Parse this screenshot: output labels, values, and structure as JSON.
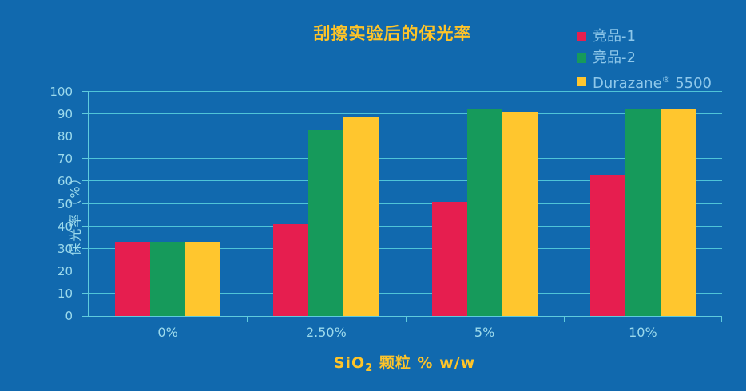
{
  "chart_data": {
    "type": "bar",
    "title": "刮擦实验后的保光率",
    "categories": [
      "0%",
      "2.50%",
      "5%",
      "10%"
    ],
    "series": [
      {
        "name": "竞品-1",
        "color": "#E61E4F",
        "values": [
          33,
          41,
          51,
          63
        ]
      },
      {
        "name": "竞品-2",
        "color": "#169A5B",
        "values": [
          33,
          83,
          92,
          92
        ]
      },
      {
        "name": "Durazane® 5500",
        "name_parts": [
          {
            "t": "Durazane"
          },
          {
            "t": "®",
            "sup": true
          },
          {
            "t": " 5500"
          }
        ],
        "color": "#FFC62E",
        "values": [
          33,
          89,
          91,
          92
        ]
      }
    ],
    "xlabel": "SiO2 颗粒 % w/w",
    "xlabel_parts": [
      {
        "t": "SiO"
      },
      {
        "t": "2",
        "sub": true
      },
      {
        "t": " 颗粒 % w/w"
      }
    ],
    "ylabel": "保光率（%）",
    "ylim": [
      0,
      100
    ],
    "ytick_step": 10,
    "grid": true,
    "legend_position": "top-right"
  },
  "colors": {
    "background": "#1169AE",
    "gridline": "#4FC4D8",
    "axis": "#5FCBDD",
    "tick_label": "#9CDAEC",
    "legend_text": "#8FC8EA",
    "title_text": "#FFC428"
  }
}
